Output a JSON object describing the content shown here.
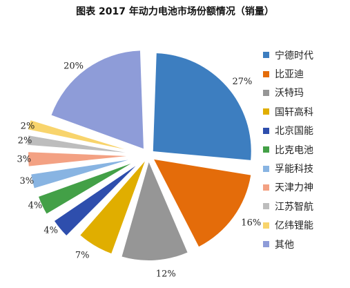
{
  "chart_data": {
    "type": "pie",
    "title": "图表 2017 年动力电池市场份额情况（销量）",
    "categories": [
      "宁德时代",
      "比亚迪",
      "沃特玛",
      "国轩高科",
      "北京国能",
      "比克电池",
      "孚能科技",
      "天津力神",
      "江苏智航",
      "亿纬锂能",
      "其他"
    ],
    "values": [
      27,
      16,
      12,
      7,
      4,
      4,
      3,
      3,
      2,
      2,
      20
    ],
    "value_labels": [
      "27%",
      "16%",
      "12%",
      "7%",
      "4%",
      "4%",
      "3%",
      "3%",
      "2%",
      "2%",
      "20%"
    ],
    "colors": [
      "#3D7EC0",
      "#E46C0A",
      "#969696",
      "#E0AE00",
      "#2E4EAD",
      "#43A047",
      "#88B4E2",
      "#F3A183",
      "#BDBDBD",
      "#F8D46C",
      "#8E9CD8"
    ],
    "legend_position": "right"
  }
}
